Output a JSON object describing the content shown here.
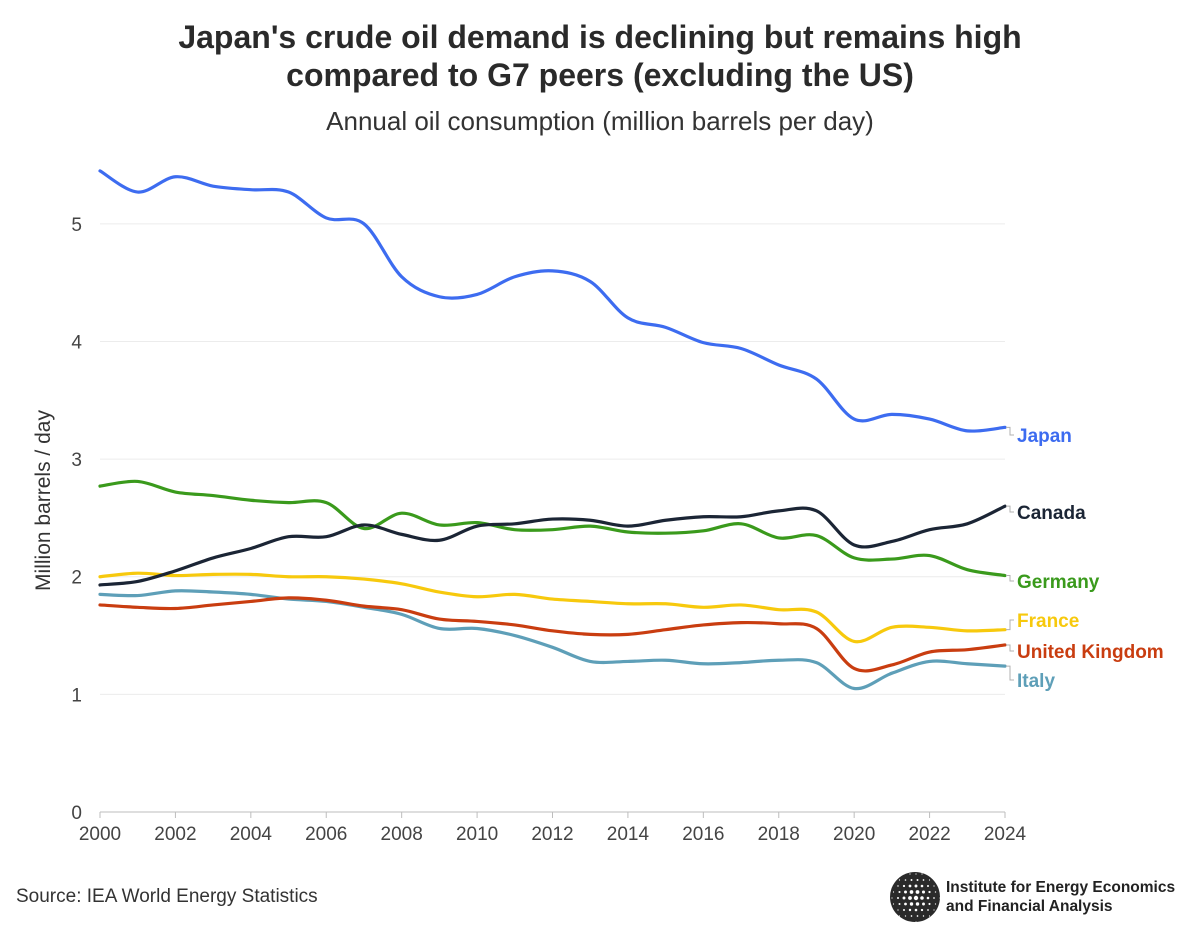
{
  "title_line1": "Japan's crude oil demand is declining but remains high",
  "title_line2": "compared to G7 peers (excluding the US)",
  "subtitle": "Annual oil consumption (million barrels per day)",
  "source": "Source: IEA World Energy Statistics",
  "logo": {
    "line1": "Institute for Energy Economics",
    "line2": "and Financial Analysis",
    "icon": "globe-icon"
  },
  "chart_data": {
    "type": "line",
    "ylabel": "Million barrels / day",
    "xlabel": "",
    "xlim": [
      2000,
      2024
    ],
    "ylim": [
      0,
      5.5
    ],
    "x_ticks": [
      2000,
      2002,
      2004,
      2006,
      2008,
      2010,
      2012,
      2014,
      2016,
      2018,
      2020,
      2022,
      2024
    ],
    "y_ticks": [
      0,
      1,
      2,
      3,
      4,
      5
    ],
    "grid": "horizontal",
    "legend": "direct labels at right end",
    "x": [
      2000,
      2001,
      2002,
      2003,
      2004,
      2005,
      2006,
      2007,
      2008,
      2009,
      2010,
      2011,
      2012,
      2013,
      2014,
      2015,
      2016,
      2017,
      2018,
      2019,
      2020,
      2021,
      2022,
      2023,
      2024
    ],
    "series": [
      {
        "name": "Japan",
        "color": "#3d6cf0",
        "values": [
          5.45,
          5.27,
          5.4,
          5.32,
          5.29,
          5.27,
          5.05,
          5.0,
          4.55,
          4.38,
          4.4,
          4.55,
          4.6,
          4.51,
          4.2,
          4.12,
          3.99,
          3.94,
          3.8,
          3.68,
          3.34,
          3.38,
          3.34,
          3.24,
          3.27
        ]
      },
      {
        "name": "Canada",
        "color": "#1b2535",
        "values": [
          1.93,
          1.96,
          2.05,
          2.16,
          2.24,
          2.34,
          2.34,
          2.44,
          2.36,
          2.31,
          2.43,
          2.45,
          2.49,
          2.48,
          2.43,
          2.48,
          2.51,
          2.51,
          2.56,
          2.56,
          2.27,
          2.3,
          2.4,
          2.45,
          2.6
        ]
      },
      {
        "name": "Germany",
        "color": "#3a9a1c",
        "values": [
          2.77,
          2.81,
          2.72,
          2.69,
          2.65,
          2.63,
          2.63,
          2.41,
          2.54,
          2.44,
          2.46,
          2.4,
          2.4,
          2.43,
          2.38,
          2.37,
          2.39,
          2.45,
          2.33,
          2.35,
          2.16,
          2.15,
          2.18,
          2.06,
          2.01
        ]
      },
      {
        "name": "France",
        "color": "#f7c90d",
        "values": [
          2.0,
          2.03,
          2.01,
          2.02,
          2.02,
          2.0,
          2.0,
          1.98,
          1.94,
          1.87,
          1.83,
          1.85,
          1.81,
          1.79,
          1.77,
          1.77,
          1.74,
          1.76,
          1.72,
          1.7,
          1.45,
          1.57,
          1.57,
          1.54,
          1.55
        ]
      },
      {
        "name": "United Kingdom",
        "color": "#c93d10",
        "values": [
          1.76,
          1.74,
          1.73,
          1.76,
          1.79,
          1.82,
          1.8,
          1.75,
          1.72,
          1.64,
          1.62,
          1.59,
          1.54,
          1.51,
          1.51,
          1.55,
          1.59,
          1.61,
          1.6,
          1.56,
          1.22,
          1.25,
          1.36,
          1.38,
          1.42
        ]
      },
      {
        "name": "Italy",
        "color": "#5e9fb8",
        "values": [
          1.85,
          1.84,
          1.88,
          1.87,
          1.85,
          1.81,
          1.79,
          1.74,
          1.68,
          1.56,
          1.56,
          1.5,
          1.4,
          1.28,
          1.28,
          1.29,
          1.26,
          1.27,
          1.29,
          1.27,
          1.05,
          1.18,
          1.28,
          1.26,
          1.24
        ]
      }
    ]
  }
}
